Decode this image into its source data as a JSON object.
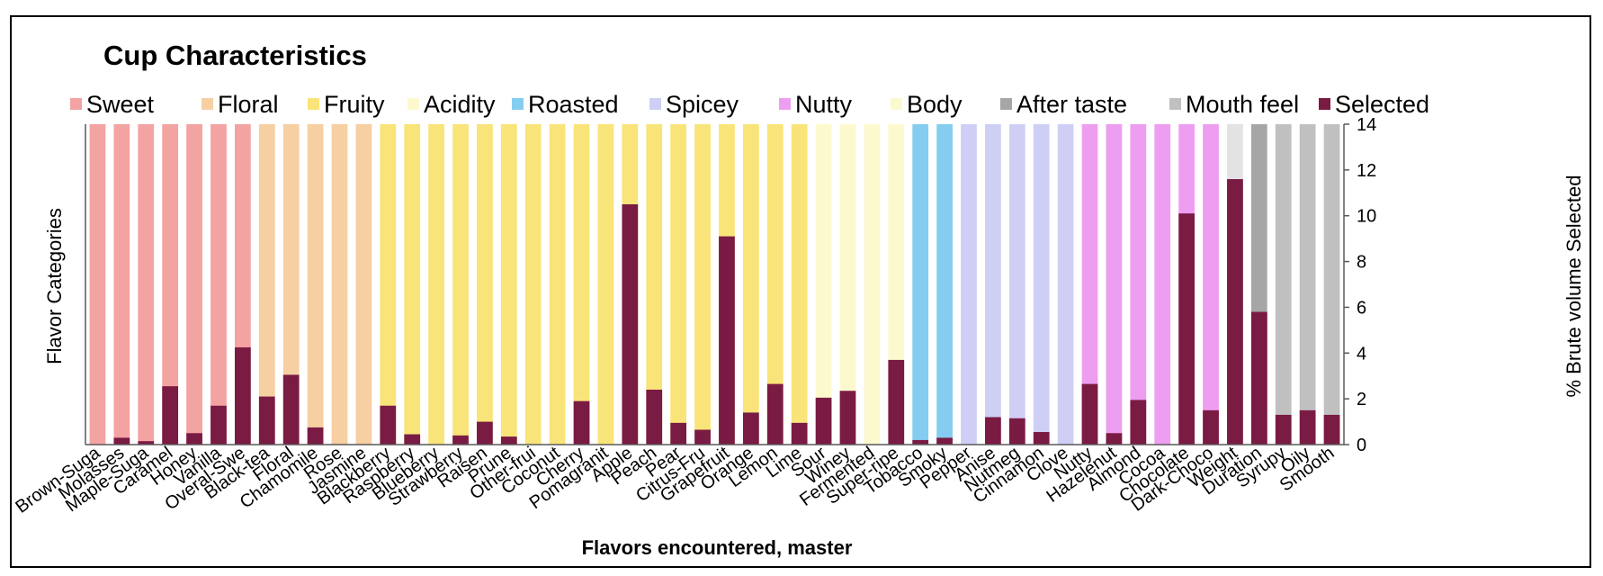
{
  "chart_data": {
    "type": "bar",
    "title": "Cup Characteristics",
    "xlabel": "Flavors encountered, master",
    "ylabel_left": "Flavor Categories",
    "ylabel_right": "% Brute volume Selected",
    "ylim": [
      0,
      14
    ],
    "yticks": [
      0,
      2,
      4,
      6,
      8,
      10,
      12,
      14
    ],
    "legend_position": "top",
    "legend": [
      {
        "name": "Sweet",
        "color": "#f4a3a3"
      },
      {
        "name": "Floral",
        "color": "#f6cfa3"
      },
      {
        "name": "Fruity",
        "color": "#f9e479"
      },
      {
        "name": "Acidity",
        "color": "#fdf9cf"
      },
      {
        "name": "Roasted",
        "color": "#85cdf0"
      },
      {
        "name": "Spicey",
        "color": "#cfcff6"
      },
      {
        "name": "Nutty",
        "color": "#ee9ef0"
      },
      {
        "name": "Body",
        "color": "#fdf9cf"
      },
      {
        "name": "After taste",
        "color": "#a6a6a6"
      },
      {
        "name": "Mouth feel",
        "color": "#c0c0c0"
      },
      {
        "name": "Selected",
        "color": "#7a1b44"
      }
    ],
    "categories": [
      "Brown-Suga",
      "Molasses",
      "Maple-Suga",
      "Caramel",
      "Honey",
      "Vanilla",
      "Overal-Swe",
      "Black-tea",
      "Floral",
      "Chamomile",
      "Rose",
      "Jasmine",
      "Blackberry",
      "Raspberry",
      "Blueberry",
      "Strawberry",
      "Raisen",
      "Prune",
      "Other-frui",
      "Coconut",
      "Cherry",
      "Pomagranit",
      "Apple",
      "Peach",
      "Pear",
      "Citrus-Fru",
      "Grapefruit",
      "Orange",
      "Lemon",
      "Lime",
      "Sour",
      "Winey",
      "Fermented",
      "Super-ripe",
      "Tobacco",
      "Smoky",
      "Pepper",
      "Anise",
      "Nutmeg",
      "Cinnamon",
      "Clove",
      "Nutty",
      "Hazelenut",
      "Almond",
      "Cocoa",
      "Chocolate",
      "Dark-Choco",
      "Weight",
      "Duration",
      "Syrupy",
      "Oily",
      "Smooth"
    ],
    "background_colors": [
      "#f4a3a3",
      "#f4a3a3",
      "#f4a3a3",
      "#f4a3a3",
      "#f4a3a3",
      "#f4a3a3",
      "#f4a3a3",
      "#f6cfa3",
      "#f6cfa3",
      "#f6cfa3",
      "#f6cfa3",
      "#f6cfa3",
      "#f9e479",
      "#f9e479",
      "#f9e479",
      "#f9e479",
      "#f9e479",
      "#f9e479",
      "#f9e479",
      "#f9e479",
      "#f9e479",
      "#f9e479",
      "#f9e479",
      "#f9e479",
      "#f9e479",
      "#f9e479",
      "#f9e479",
      "#f9e479",
      "#f9e479",
      "#f9e479",
      "#fdf9cf",
      "#fdf9cf",
      "#fdf9cf",
      "#fdf9cf",
      "#85cdf0",
      "#85cdf0",
      "#cfcff6",
      "#cfcff6",
      "#cfcff6",
      "#cfcff6",
      "#cfcff6",
      "#ee9ef0",
      "#ee9ef0",
      "#ee9ef0",
      "#ee9ef0",
      "#ee9ef0",
      "#ee9ef0",
      "#e3e3e3",
      "#a6a6a6",
      "#c0c0c0",
      "#c0c0c0",
      "#c0c0c0"
    ],
    "series": [
      {
        "name": "Selected",
        "values": [
          0,
          0.3,
          0.15,
          2.55,
          0.5,
          1.7,
          4.25,
          2.1,
          3.05,
          0.75,
          0,
          0,
          1.7,
          0.45,
          0,
          0.4,
          1.0,
          0.35,
          0,
          0,
          1.9,
          0,
          10.5,
          2.4,
          0.95,
          0.65,
          9.1,
          1.4,
          2.65,
          0.95,
          2.05,
          2.35,
          0,
          3.7,
          0.2,
          0.3,
          0,
          1.2,
          1.15,
          0.55,
          0,
          2.65,
          0.5,
          1.95,
          0,
          10.1,
          1.5,
          11.6,
          5.8,
          1.3,
          1.5,
          1.3
        ]
      }
    ]
  }
}
